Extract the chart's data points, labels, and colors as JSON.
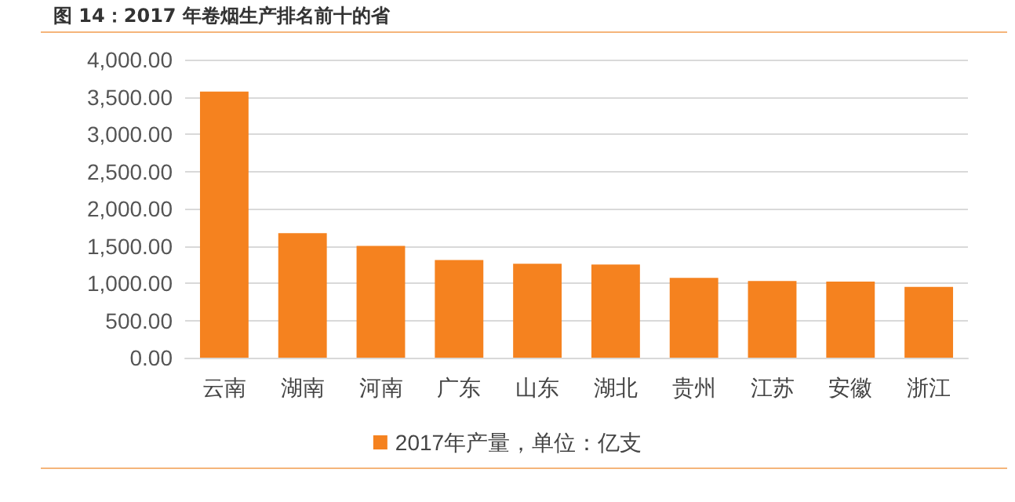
{
  "chart_data": {
    "type": "bar",
    "title": "图 14：2017 年卷烟生产排名前十的省",
    "categories": [
      "云南",
      "湖南",
      "河南",
      "广东",
      "山东",
      "湖北",
      "贵州",
      "江苏",
      "安徽",
      "浙江"
    ],
    "series": [
      {
        "name": "2017年产量，单位：亿支",
        "color": "#f5821f",
        "values": [
          3570,
          1670,
          1500,
          1310,
          1260,
          1250,
          1070,
          1030,
          1020,
          950
        ]
      }
    ],
    "ylim": [
      0,
      4000
    ],
    "yticks": [
      {
        "value": 0,
        "label": "0.00"
      },
      {
        "value": 500,
        "label": "500.00"
      },
      {
        "value": 1000,
        "label": "1,000.00"
      },
      {
        "value": 1500,
        "label": "1,500.00"
      },
      {
        "value": 2000,
        "label": "2,000.00"
      },
      {
        "value": 2500,
        "label": "2,500.00"
      },
      {
        "value": 3000,
        "label": "3,000.00"
      },
      {
        "value": 3500,
        "label": "3,500.00"
      },
      {
        "value": 4000,
        "label": "4,000.00"
      }
    ],
    "grid": "y",
    "legend": "bottom"
  }
}
